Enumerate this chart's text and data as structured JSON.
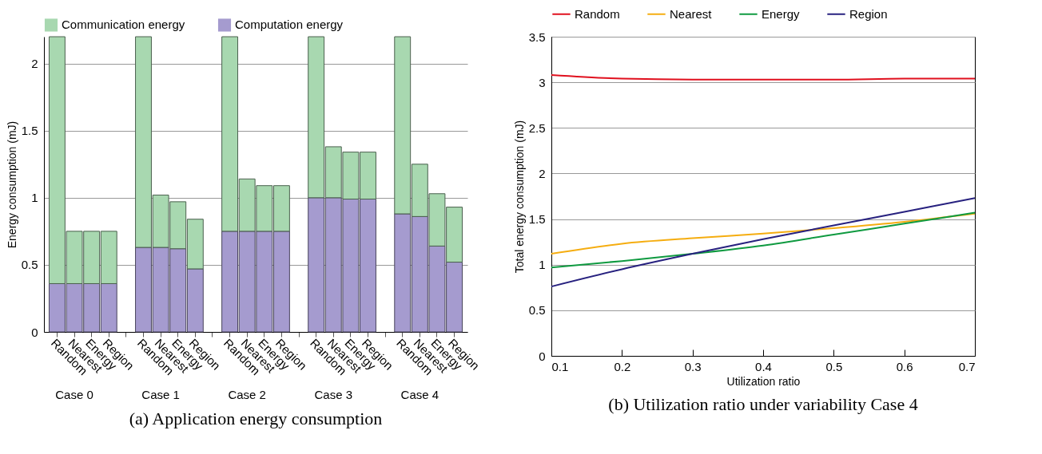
{
  "chart_data": [
    {
      "type": "bar",
      "title": "(a) Application energy consumption",
      "ylabel": "Energy consumption (mJ)",
      "stacked": true,
      "categories": [
        "Random",
        "Nearest",
        "Energy",
        "Region",
        null,
        "Random",
        "Nearest",
        "Energy",
        "Region",
        null,
        "Random",
        "Nearest",
        "Energy",
        "Region",
        null,
        "Random",
        "Nearest",
        "Energy",
        "Region",
        null,
        "Random",
        "Nearest",
        "Energy",
        "Region"
      ],
      "series": [
        {
          "name": "Computation energy",
          "color": "#a59bcf",
          "values": [
            0.36,
            0.36,
            0.36,
            0.36,
            null,
            0.63,
            0.63,
            0.62,
            0.47,
            null,
            0.75,
            0.75,
            0.75,
            0.75,
            null,
            1.0,
            1.0,
            0.99,
            0.99,
            null,
            0.88,
            0.86,
            0.64,
            0.52
          ]
        },
        {
          "name": "Communication energy",
          "color": "#a8d8b0",
          "values": [
            1.84,
            0.39,
            0.39,
            0.39,
            null,
            1.57,
            0.39,
            0.35,
            0.37,
            null,
            1.45,
            0.39,
            0.34,
            0.34,
            null,
            1.2,
            0.38,
            0.35,
            0.35,
            null,
            1.32,
            0.39,
            0.39,
            0.41
          ]
        }
      ],
      "ylim": [
        0,
        2.2
      ],
      "yticks": [
        0,
        0.5,
        1,
        1.5,
        2
      ],
      "grid": "y",
      "legend": "top",
      "annotations": [
        "Case 0",
        "Case 1",
        "Case 2",
        "Case 3",
        "Case 4"
      ]
    },
    {
      "type": "line",
      "title": "(b) Utilization ratio under variability Case 4",
      "xlabel": "Utilization ratio",
      "ylabel": "Total energy consumption (mJ)",
      "x": [
        0.1,
        0.2,
        0.3,
        0.4,
        0.5,
        0.6,
        0.7
      ],
      "series": [
        {
          "name": "Random",
          "color": "#e0101e",
          "values": [
            3.08,
            3.04,
            3.03,
            3.03,
            3.03,
            3.04,
            3.04
          ]
        },
        {
          "name": "Nearest",
          "color": "#f5ad10",
          "values": [
            1.12,
            1.23,
            1.29,
            1.34,
            1.4,
            1.47,
            1.56
          ]
        },
        {
          "name": "Energy",
          "color": "#0f9a40",
          "values": [
            0.97,
            1.04,
            1.12,
            1.21,
            1.33,
            1.45,
            1.57
          ]
        },
        {
          "name": "Region",
          "color": "#27217f",
          "values": [
            0.76,
            0.95,
            1.12,
            1.28,
            1.43,
            1.58,
            1.73
          ]
        }
      ],
      "xlim": [
        0.1,
        0.7
      ],
      "xticks": [
        0.1,
        0.2,
        0.3,
        0.4,
        0.5,
        0.6,
        0.7
      ],
      "ylim": [
        0,
        3.5
      ],
      "yticks": [
        0,
        0.5,
        1,
        1.5,
        2,
        2.5,
        3,
        3.5
      ],
      "grid": "y",
      "legend": "top",
      "marker": "none",
      "line_style": "solid"
    }
  ]
}
